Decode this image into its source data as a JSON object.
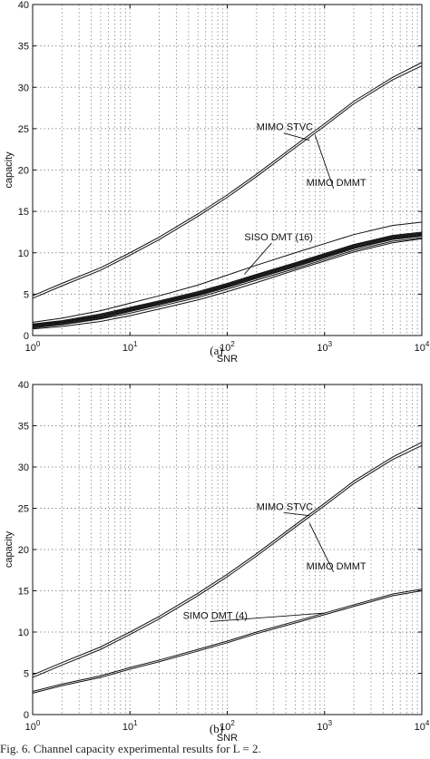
{
  "caption": "Fig. 6.   Channel capacity experimental results for L = 2.",
  "chart_data": [
    {
      "type": "line",
      "panel_label": "(a)",
      "xlabel": "SNR",
      "ylabel": "capacity",
      "xscale": "log",
      "xlim": [
        1,
        10000
      ],
      "ylim": [
        0,
        40
      ],
      "x_tick_labels": [
        "10^0",
        "10^1",
        "10^2",
        "10^3",
        "10^4"
      ],
      "y_ticks": [
        0,
        5,
        10,
        15,
        20,
        25,
        30,
        35,
        40
      ],
      "grid": true,
      "x": [
        1,
        2,
        5,
        10,
        20,
        50,
        100,
        200,
        500,
        1000,
        2000,
        5000,
        10000
      ],
      "series": [
        {
          "name": "MIMO STVC",
          "values": [
            4.8,
            6.3,
            8.2,
            10.0,
            11.9,
            14.7,
            17.0,
            19.5,
            23.0,
            25.6,
            28.3,
            31.2,
            33.0
          ]
        },
        {
          "name": "MIMO DMMT",
          "values": [
            4.5,
            6.0,
            7.9,
            9.7,
            11.6,
            14.4,
            16.7,
            19.2,
            22.7,
            25.3,
            28.0,
            30.9,
            32.6
          ]
        },
        {
          "name": "SISO DMT (16)",
          "values": [
            1.6,
            2.1,
            3.0,
            3.9,
            4.8,
            6.1,
            7.3,
            8.5,
            10.0,
            11.1,
            12.2,
            13.3,
            13.7
          ]
        },
        {
          "name": "",
          "values": [
            1.4,
            1.8,
            2.6,
            3.4,
            4.2,
            5.3,
            6.3,
            7.4,
            8.8,
            9.9,
            11.0,
            12.1,
            12.5
          ]
        },
        {
          "name": "",
          "values": [
            1.3,
            1.7,
            2.5,
            3.3,
            4.1,
            5.2,
            6.2,
            7.3,
            8.7,
            9.8,
            10.9,
            12.0,
            12.4
          ]
        },
        {
          "name": "",
          "values": [
            1.2,
            1.6,
            2.4,
            3.2,
            4.0,
            5.1,
            6.1,
            7.2,
            8.6,
            9.7,
            10.8,
            11.9,
            12.3
          ]
        },
        {
          "name": "",
          "values": [
            1.2,
            1.6,
            2.3,
            3.1,
            3.9,
            5.0,
            6.0,
            7.1,
            8.5,
            9.6,
            10.7,
            11.8,
            12.2
          ]
        },
        {
          "name": "",
          "values": [
            1.1,
            1.5,
            2.2,
            3.0,
            3.8,
            4.9,
            5.9,
            7.0,
            8.4,
            9.5,
            10.6,
            11.7,
            12.1
          ]
        },
        {
          "name": "",
          "values": [
            1.0,
            1.4,
            2.1,
            2.9,
            3.7,
            4.8,
            5.8,
            6.9,
            8.3,
            9.4,
            10.5,
            11.6,
            12.0
          ]
        },
        {
          "name": "",
          "values": [
            0.9,
            1.3,
            2.0,
            2.7,
            3.5,
            4.6,
            5.6,
            6.7,
            8.1,
            9.2,
            10.3,
            11.4,
            11.8
          ]
        },
        {
          "name": "",
          "values": [
            0.8,
            1.1,
            1.7,
            2.4,
            3.2,
            4.3,
            5.3,
            6.4,
            7.9,
            9.0,
            10.1,
            11.2,
            11.7
          ]
        }
      ],
      "annotations": [
        {
          "text": "MIMO STVC",
          "x": 700,
          "y": 23.6,
          "label_x": 200,
          "label_y": 24.8
        },
        {
          "text": "MIMO DMMT",
          "x": 800,
          "y": 24.2,
          "label_x": 650,
          "label_y": 18.1
        },
        {
          "text": "SISO DMT (16)",
          "x": 150,
          "y": 7.4,
          "label_x": 150,
          "label_y": 11.5
        }
      ]
    },
    {
      "type": "line",
      "panel_label": "(b)",
      "xlabel": "SNR",
      "ylabel": "capacity",
      "xscale": "log",
      "xlim": [
        1,
        10000
      ],
      "ylim": [
        0,
        40
      ],
      "x_tick_labels": [
        "10^0",
        "10^1",
        "10^2",
        "10^3",
        "10^4"
      ],
      "y_ticks": [
        0,
        5,
        10,
        15,
        20,
        25,
        30,
        35,
        40
      ],
      "grid": true,
      "x": [
        1,
        2,
        5,
        10,
        20,
        50,
        100,
        200,
        500,
        1000,
        2000,
        5000,
        10000
      ],
      "series": [
        {
          "name": "MIMO STVC",
          "values": [
            4.8,
            6.3,
            8.2,
            10.0,
            11.9,
            14.7,
            17.0,
            19.5,
            23.0,
            25.6,
            28.3,
            31.2,
            33.0
          ]
        },
        {
          "name": "MIMO DMMT",
          "values": [
            4.5,
            6.0,
            7.9,
            9.7,
            11.6,
            14.4,
            16.7,
            19.2,
            22.7,
            25.3,
            28.0,
            30.9,
            32.6
          ]
        },
        {
          "name": "SIMO DMT (4)",
          "values": [
            2.8,
            3.7,
            4.7,
            5.7,
            6.6,
            7.9,
            8.9,
            10.0,
            11.3,
            12.3,
            13.3,
            14.6,
            15.2
          ]
        },
        {
          "name": "",
          "values": [
            2.6,
            3.5,
            4.5,
            5.5,
            6.4,
            7.7,
            8.7,
            9.8,
            11.1,
            12.1,
            13.1,
            14.4,
            15.0
          ]
        }
      ],
      "annotations": [
        {
          "text": "MIMO STVC",
          "x": 700,
          "y": 24.1,
          "label_x": 200,
          "label_y": 24.8
        },
        {
          "text": "MIMO DMMT",
          "x": 700,
          "y": 23.2,
          "label_x": 650,
          "label_y": 17.6
        },
        {
          "text": "SIMO DMT (4)",
          "x": 1000,
          "y": 12.3,
          "label_x": 35,
          "label_y": 11.6
        }
      ]
    }
  ]
}
